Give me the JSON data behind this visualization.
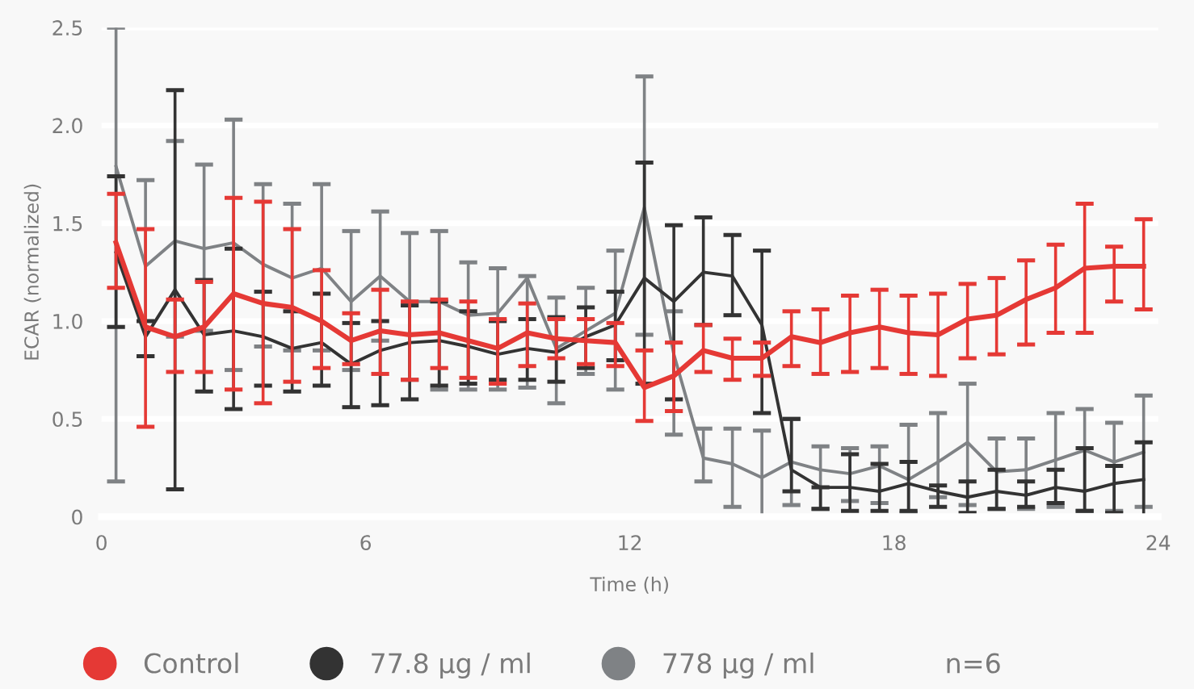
{
  "chart_data": {
    "type": "line",
    "xlabel": "Time (h)",
    "ylabel": "ECAR (normalized)",
    "xlim": [
      0,
      24
    ],
    "xticks": [
      0,
      6,
      12,
      18,
      24
    ],
    "ylim": [
      0,
      2.5
    ],
    "yticks": [
      0,
      {
        "value": 0.5,
        "label": "0.5"
      },
      {
        "value": 1,
        "label": "1.0"
      },
      {
        "value": 1.5,
        "label": "1.5"
      },
      {
        "value": 2,
        "label": "2.0"
      },
      {
        "value": 2.5,
        "label": "2.5"
      }
    ],
    "x": [
      0.33,
      1,
      1.67,
      2.33,
      3,
      3.67,
      4.33,
      5,
      5.67,
      6.33,
      7,
      7.67,
      8.33,
      9,
      9.67,
      10.33,
      11,
      11.67,
      12.33,
      13,
      13.67,
      14.33,
      15,
      15.67,
      16.33,
      17,
      17.67,
      18.33,
      19,
      19.67,
      20.33,
      21,
      21.67,
      22.33,
      23,
      23.67
    ],
    "series": [
      {
        "name": "Control",
        "color": "#e53935",
        "values": [
          1.4,
          0.97,
          0.92,
          0.97,
          1.14,
          1.09,
          1.07,
          1.0,
          0.9,
          0.95,
          0.93,
          0.94,
          0.9,
          0.86,
          0.94,
          0.91,
          0.9,
          0.89,
          0.66,
          0.72,
          0.85,
          0.81,
          0.81,
          0.92,
          0.89,
          0.94,
          0.97,
          0.94,
          0.93,
          1.01,
          1.03,
          1.11,
          1.17,
          1.27,
          1.28,
          1.28
        ],
        "errors": [
          [
            1.17,
            1.65
          ],
          [
            0.46,
            1.47
          ],
          [
            0.74,
            1.11
          ],
          [
            0.74,
            1.2
          ],
          [
            0.65,
            1.63
          ],
          [
            0.58,
            1.61
          ],
          [
            0.69,
            1.47
          ],
          [
            0.76,
            1.26
          ],
          [
            0.78,
            1.04
          ],
          [
            0.73,
            1.16
          ],
          [
            0.7,
            1.1
          ],
          [
            0.76,
            1.11
          ],
          [
            0.71,
            1.1
          ],
          [
            0.68,
            1.01
          ],
          [
            0.77,
            1.09
          ],
          [
            0.81,
            1.01
          ],
          [
            0.78,
            1.01
          ],
          [
            0.77,
            0.99
          ],
          [
            0.49,
            0.85
          ],
          [
            0.54,
            0.89
          ],
          [
            0.74,
            0.98
          ],
          [
            0.7,
            0.91
          ],
          [
            0.72,
            0.89
          ],
          [
            0.77,
            1.05
          ],
          [
            0.73,
            1.06
          ],
          [
            0.74,
            1.13
          ],
          [
            0.76,
            1.16
          ],
          [
            0.73,
            1.13
          ],
          [
            0.72,
            1.14
          ],
          [
            0.81,
            1.19
          ],
          [
            0.83,
            1.22
          ],
          [
            0.88,
            1.31
          ],
          [
            0.94,
            1.39
          ],
          [
            0.94,
            1.6
          ],
          [
            1.1,
            1.38
          ],
          [
            1.06,
            1.52
          ]
        ]
      },
      {
        "name": "77.8 µg / ml",
        "color": "#333333",
        "values": [
          1.35,
          0.92,
          1.16,
          0.93,
          0.95,
          0.92,
          0.86,
          0.89,
          0.78,
          0.85,
          0.89,
          0.9,
          0.87,
          0.83,
          0.86,
          0.84,
          0.92,
          0.98,
          1.22,
          1.1,
          1.25,
          1.23,
          0.98,
          0.24,
          0.15,
          0.15,
          0.13,
          0.17,
          0.13,
          0.1,
          0.13,
          0.11,
          0.15,
          0.13,
          0.17,
          0.19
        ],
        "errors": [
          [
            0.97,
            1.74
          ],
          [
            0.82,
            1.0
          ],
          [
            0.14,
            2.18
          ],
          [
            0.64,
            1.21
          ],
          [
            0.55,
            1.37
          ],
          [
            0.67,
            1.15
          ],
          [
            0.64,
            1.05
          ],
          [
            0.67,
            1.14
          ],
          [
            0.56,
            0.99
          ],
          [
            0.57,
            1.0
          ],
          [
            0.6,
            1.08
          ],
          [
            0.67,
            1.1
          ],
          [
            0.68,
            1.05
          ],
          [
            0.7,
            1.0
          ],
          [
            0.7,
            1.01
          ],
          [
            0.69,
            1.02
          ],
          [
            0.76,
            1.07
          ],
          [
            0.8,
            1.15
          ],
          [
            0.68,
            1.81
          ],
          [
            0.6,
            1.49
          ],
          [
            0.98,
            1.53
          ],
          [
            1.03,
            1.44
          ],
          [
            0.53,
            1.36
          ],
          [
            0.13,
            0.5
          ],
          [
            0.04,
            0.15
          ],
          [
            0.03,
            0.32
          ],
          [
            0.03,
            0.27
          ],
          [
            0.03,
            0.28
          ],
          [
            0.05,
            0.16
          ],
          [
            0.02,
            0.18
          ],
          [
            0.04,
            0.24
          ],
          [
            0.05,
            0.18
          ],
          [
            0.07,
            0.24
          ],
          [
            0.03,
            0.35
          ],
          [
            0.02,
            0.26
          ],
          [
            0.0,
            0.38
          ]
        ]
      },
      {
        "name": "778 µg / ml",
        "color": "#7f8285",
        "values": [
          1.79,
          1.28,
          1.41,
          1.37,
          1.4,
          1.29,
          1.22,
          1.27,
          1.1,
          1.23,
          1.1,
          1.1,
          1.03,
          1.04,
          1.22,
          0.86,
          0.95,
          1.04,
          1.58,
          0.83,
          0.3,
          0.27,
          0.2,
          0.28,
          0.24,
          0.22,
          0.26,
          0.19,
          0.28,
          0.38,
          0.23,
          0.24,
          0.29,
          0.34,
          0.28,
          0.33
        ],
        "errors": [
          [
            0.18,
            2.5
          ],
          [
            0.82,
            1.72
          ],
          [
            0.92,
            1.92
          ],
          [
            0.95,
            1.8
          ],
          [
            0.75,
            2.03
          ],
          [
            0.87,
            1.7
          ],
          [
            0.85,
            1.6
          ],
          [
            0.85,
            1.7
          ],
          [
            0.75,
            1.46
          ],
          [
            0.9,
            1.56
          ],
          [
            0.7,
            1.45
          ],
          [
            0.65,
            1.46
          ],
          [
            0.65,
            1.3
          ],
          [
            0.65,
            1.27
          ],
          [
            0.66,
            1.23
          ],
          [
            0.58,
            1.12
          ],
          [
            0.73,
            1.17
          ],
          [
            0.65,
            1.36
          ],
          [
            0.93,
            2.25
          ],
          [
            0.42,
            1.05
          ],
          [
            0.18,
            0.45
          ],
          [
            0.05,
            0.45
          ],
          [
            0.0,
            0.44
          ],
          [
            0.06,
            0.5
          ],
          [
            0.04,
            0.36
          ],
          [
            0.08,
            0.35
          ],
          [
            0.07,
            0.36
          ],
          [
            0.02,
            0.47
          ],
          [
            0.1,
            0.53
          ],
          [
            0.06,
            0.68
          ],
          [
            0.04,
            0.4
          ],
          [
            0.04,
            0.4
          ],
          [
            0.05,
            0.53
          ],
          [
            0.03,
            0.55
          ],
          [
            0.03,
            0.48
          ],
          [
            0.05,
            0.62
          ]
        ]
      }
    ],
    "grid": "y",
    "legend": "bottom",
    "marker": "none",
    "annotations": [
      "n=6"
    ]
  }
}
